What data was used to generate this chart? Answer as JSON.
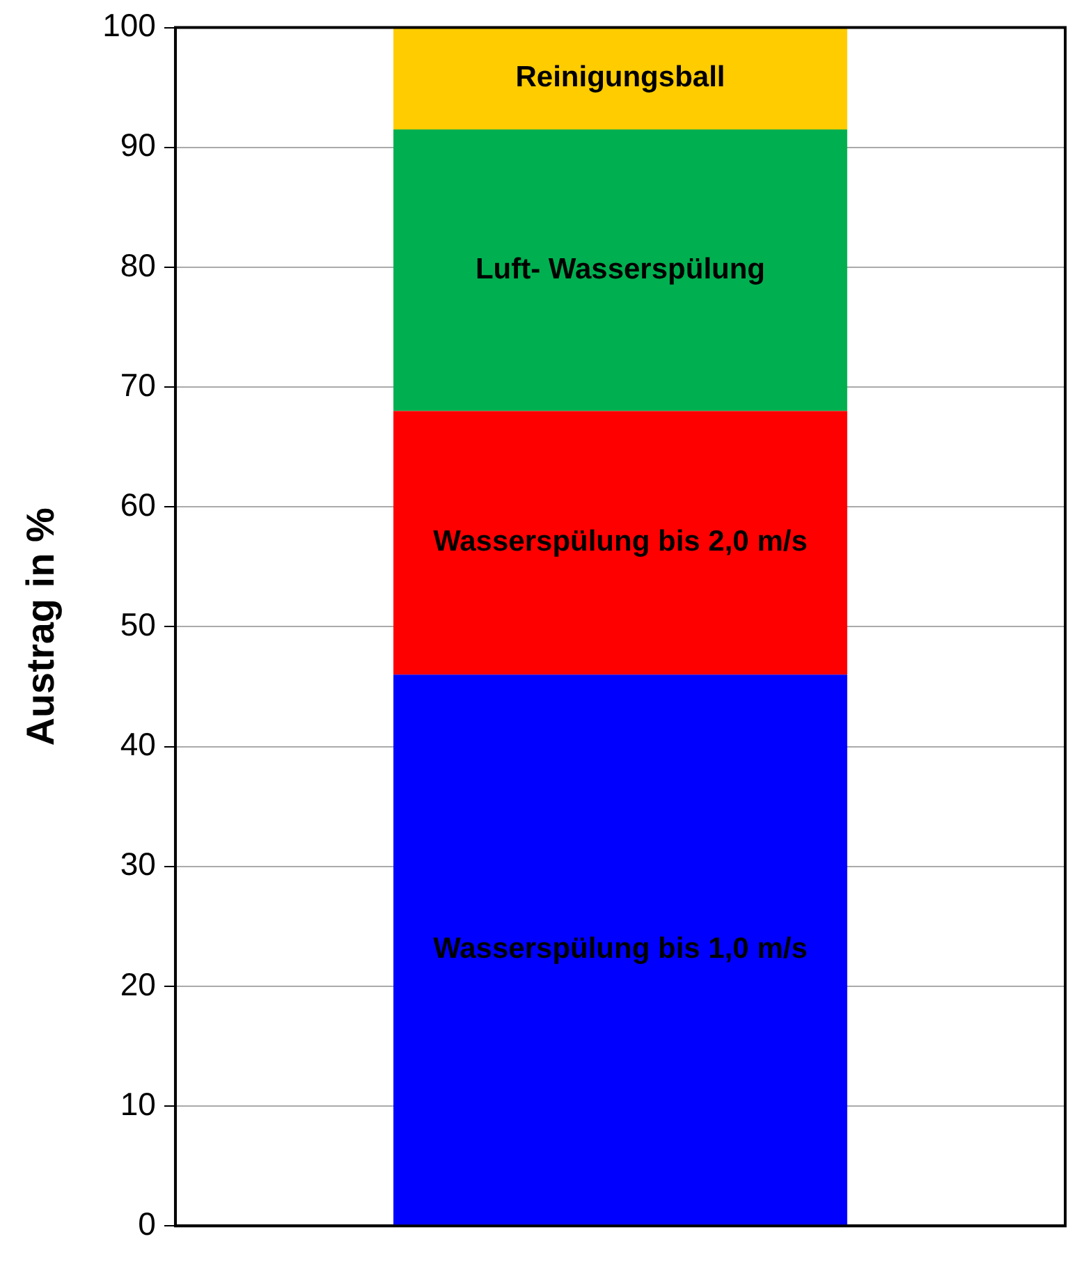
{
  "chart_data": {
    "type": "bar",
    "stacked": true,
    "ylabel": "Austrag in %",
    "categories": [
      null
    ],
    "series": [
      {
        "name": "Wasserspülung bis 1,0 m/s",
        "color": "#0000ff",
        "values": [
          46
        ]
      },
      {
        "name": "Wasserspülung bis 2,0 m/s",
        "color": "#ff0000",
        "values": [
          22
        ]
      },
      {
        "name": "Luft- Wasserspülung",
        "color": "#00b050",
        "values": [
          23.5
        ]
      },
      {
        "name": "Reinigungsball",
        "color": "#ffcc00",
        "values": [
          8.5
        ]
      }
    ],
    "ylim": [
      0,
      100
    ],
    "yticks": [
      0,
      10,
      20,
      30,
      40,
      50,
      60,
      70,
      80,
      90,
      100
    ],
    "grid": "y",
    "legend": false
  }
}
